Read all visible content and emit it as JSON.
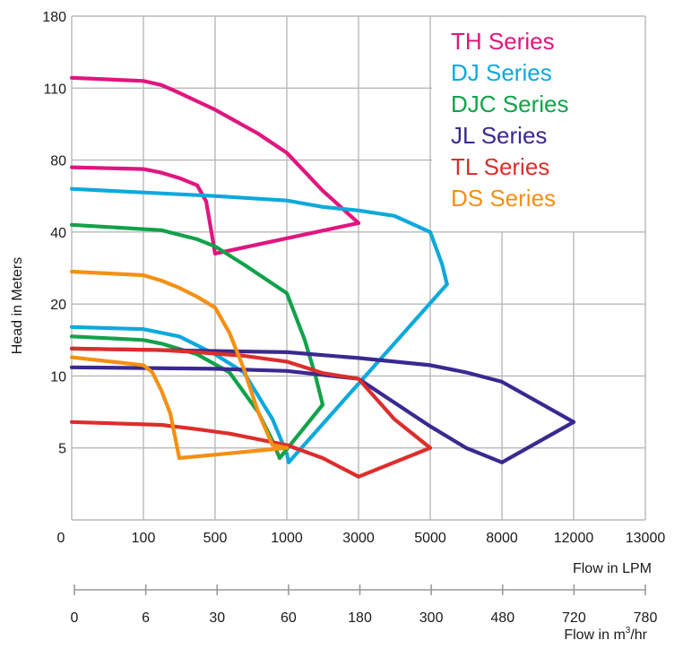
{
  "chart_data": {
    "type": "line",
    "title": "",
    "ylabel": "Head in Meters",
    "xlabel": "Flow in LPM",
    "x2label": "Flow in m³/hr",
    "y_ticks": [
      "5",
      "10",
      "20",
      "40",
      "80",
      "110",
      "180"
    ],
    "x_ticks": [
      "0",
      "100",
      "500",
      "1000",
      "3000",
      "5000",
      "8000",
      "12000",
      "13000"
    ],
    "x2_ticks": [
      "0",
      "6",
      "30",
      "60",
      "180",
      "300",
      "480",
      "720",
      "780"
    ],
    "grid": true,
    "legend_position": "top-right",
    "axis_note": "Both axes use non-uniform tick spacing; each tick is equally spaced.",
    "series": [
      {
        "name": "TH Series",
        "color": "#e0167f",
        "curves": [
          [
            [
              0,
              120
            ],
            [
              100,
              117
            ],
            [
              200,
              113
            ],
            [
              300,
              108
            ],
            [
              500,
              101
            ],
            [
              800,
              91
            ],
            [
              1000,
              83
            ],
            [
              2000,
              63
            ],
            [
              3000,
              45
            ]
          ],
          [
            [
              0,
              76
            ],
            [
              100,
              75
            ],
            [
              200,
              73
            ],
            [
              300,
              70
            ],
            [
              400,
              66
            ],
            [
              450,
              57
            ],
            [
              500,
              34
            ]
          ],
          [
            [
              500,
              34
            ],
            [
              3000,
              45
            ]
          ]
        ]
      },
      {
        "name": "DJ Series",
        "color": "#0da9dc",
        "curves": [
          [
            [
              0,
              64
            ],
            [
              500,
              60
            ],
            [
              1000,
              57.5
            ],
            [
              2000,
              54
            ],
            [
              3000,
              52
            ],
            [
              4000,
              49
            ],
            [
              5000,
              40
            ],
            [
              5500,
              31
            ],
            [
              5700,
              25.5
            ]
          ],
          [
            [
              0,
              16.8
            ],
            [
              100,
              16.5
            ],
            [
              300,
              15.5
            ],
            [
              500,
              13
            ],
            [
              700,
              10.5
            ],
            [
              900,
              7
            ],
            [
              1000,
              4.6
            ],
            [
              1050,
              4
            ]
          ],
          [
            [
              1050,
              4
            ],
            [
              5700,
              25.5
            ]
          ]
        ]
      },
      {
        "name": "DJC Series",
        "color": "#12a24a",
        "curves": [
          [
            [
              0,
              44
            ],
            [
              200,
              41
            ],
            [
              400,
              38
            ],
            [
              500,
              36
            ],
            [
              700,
              31
            ],
            [
              1000,
              23
            ],
            [
              1500,
              15
            ],
            [
              1800,
              10
            ],
            [
              2000,
              8
            ]
          ],
          [
            [
              0,
              15.5
            ],
            [
              100,
              15
            ],
            [
              200,
              14.5
            ],
            [
              400,
              13
            ],
            [
              600,
              10.5
            ],
            [
              800,
              7.5
            ],
            [
              900,
              5.5
            ],
            [
              950,
              4.3
            ]
          ],
          [
            [
              950,
              4.3
            ],
            [
              2000,
              8
            ]
          ]
        ]
      },
      {
        "name": "JL Series",
        "color": "#3b2890",
        "curves": [
          [
            [
              0,
              13.8
            ],
            [
              1000,
              13.3
            ],
            [
              3000,
              12.5
            ],
            [
              5000,
              11.5
            ],
            [
              6500,
              10.5
            ],
            [
              8000,
              9.6
            ],
            [
              10000,
              8.2
            ],
            [
              12000,
              6.8
            ]
          ],
          [
            [
              0,
              11.2
            ],
            [
              500,
              11
            ],
            [
              1000,
              10.7
            ],
            [
              3000,
              9.8
            ],
            [
              5000,
              6.5
            ],
            [
              6500,
              5
            ],
            [
              8000,
              4
            ]
          ],
          [
            [
              8000,
              4
            ],
            [
              12000,
              6.8
            ]
          ]
        ]
      },
      {
        "name": "TL Series",
        "color": "#dc2e2c",
        "curves": [
          [
            [
              0,
              13.8
            ],
            [
              200,
              13.6
            ],
            [
              400,
              13.3
            ],
            [
              700,
              12.8
            ],
            [
              1000,
              12
            ],
            [
              1500,
              11.2
            ],
            [
              2000,
              10.4
            ],
            [
              3000,
              9.8
            ],
            [
              4000,
              7
            ],
            [
              5000,
              5
            ]
          ],
          [
            [
              0,
              6.8
            ],
            [
              200,
              6.6
            ],
            [
              400,
              6.3
            ],
            [
              600,
              6
            ],
            [
              800,
              5.6
            ],
            [
              1000,
              5.2
            ],
            [
              2000,
              4.3
            ],
            [
              3000,
              3
            ]
          ],
          [
            [
              3000,
              3
            ],
            [
              5000,
              5
            ]
          ]
        ]
      },
      {
        "name": "DS Series",
        "color": "#f39014",
        "curves": [
          [
            [
              0,
              29
            ],
            [
              100,
              28
            ],
            [
              200,
              26.5
            ],
            [
              300,
              24.5
            ],
            [
              400,
              22
            ],
            [
              500,
              19.5
            ],
            [
              600,
              16
            ],
            [
              700,
              11
            ],
            [
              800,
              7.5
            ],
            [
              900,
              5.2
            ],
            [
              1000,
              5
            ]
          ],
          [
            [
              0,
              12.6
            ],
            [
              100,
              11.5
            ],
            [
              150,
              10.5
            ],
            [
              200,
              9
            ],
            [
              250,
              7.4
            ],
            [
              300,
              4.3
            ]
          ],
          [
            [
              300,
              4.3
            ],
            [
              1000,
              5
            ]
          ]
        ]
      }
    ]
  }
}
